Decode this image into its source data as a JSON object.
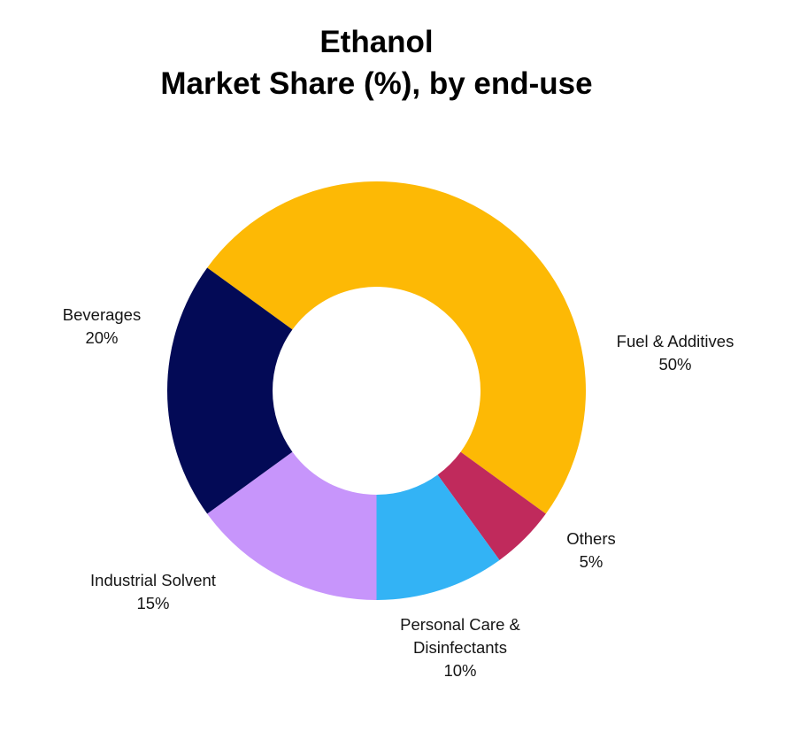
{
  "title": {
    "line1": "Ethanol",
    "line2": "Market Share (%), by end-use"
  },
  "chart_data": {
    "type": "pie",
    "variant": "donut",
    "title": "Ethanol Market Share (%), by end-use",
    "categories": [
      "Fuel & Additives",
      "Others",
      "Personal Care & Disinfectants",
      "Industrial Solvent",
      "Beverages"
    ],
    "values": [
      50,
      5,
      10,
      15,
      20
    ],
    "unit": "%",
    "colors": [
      "#FDB905",
      "#C02A5C",
      "#33B3F5",
      "#C795FB",
      "#030A56"
    ],
    "start_angle_deg_clockwise_from_top": 306,
    "legend": "none (direct labels)",
    "labels": [
      {
        "name": "Fuel & Additives",
        "value": "50%"
      },
      {
        "name": "Others",
        "value": "5%"
      },
      {
        "name": "Personal Care & Disinfectants",
        "value": "10%"
      },
      {
        "name": "Industrial Solvent",
        "value": "15%"
      },
      {
        "name": "Beverages",
        "value": "20%"
      }
    ]
  },
  "labels": {
    "fuel": {
      "line1": "Fuel & Additives",
      "line2": "50%"
    },
    "others": {
      "line1": "Others",
      "line2": "5%"
    },
    "personal": {
      "line1": "Personal Care &",
      "line2": "Disinfectants",
      "line3": "10%"
    },
    "industrial": {
      "line1": "Industrial Solvent",
      "line2": "15%"
    },
    "beverages": {
      "line1": "Beverages",
      "line2": "20%"
    }
  }
}
